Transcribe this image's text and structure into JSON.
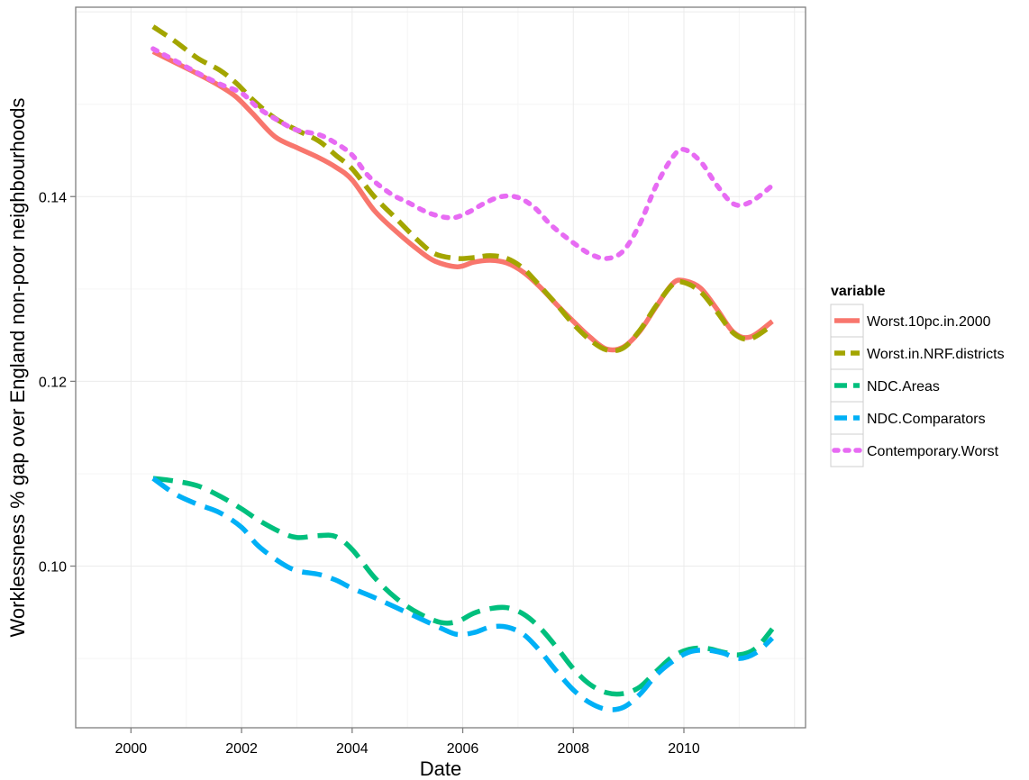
{
  "chart_data": {
    "type": "line",
    "xlabel": "Date",
    "ylabel": "Worklessness % gap over England non-poor neighbourhoods",
    "xlim": [
      1999.0,
      2012.2
    ],
    "ylim": [
      0.0825,
      0.1605
    ],
    "xticks": [
      2000,
      2002,
      2004,
      2006,
      2008,
      2010
    ],
    "yticks": [
      0.1,
      0.12,
      0.14
    ],
    "grid": true,
    "legend": {
      "title": "variable",
      "position": "right"
    },
    "series": [
      {
        "name": "Worst.10pc.in.2000",
        "color": "#F8766D",
        "dash": "solid",
        "x": [
          2000.4,
          2000.8,
          2001.2,
          2001.6,
          2001.9,
          2002.2,
          2002.6,
          2003.0,
          2003.4,
          2003.7,
          2004.0,
          2004.4,
          2004.8,
          2005.2,
          2005.5,
          2005.9,
          2006.2,
          2006.5,
          2006.8,
          2007.1,
          2007.4,
          2007.7,
          2008.0,
          2008.3,
          2008.6,
          2008.9,
          2009.2,
          2009.5,
          2009.8,
          2010.0,
          2010.3,
          2010.6,
          2010.9,
          2011.2,
          2011.6
        ],
        "y": [
          0.1557,
          0.1545,
          0.1533,
          0.152,
          0.1508,
          0.149,
          0.1465,
          0.1453,
          0.1442,
          0.1432,
          0.1418,
          0.1385,
          0.1362,
          0.1342,
          0.133,
          0.1324,
          0.1329,
          0.1331,
          0.1328,
          0.1318,
          0.1302,
          0.1283,
          0.1265,
          0.1248,
          0.1235,
          0.1237,
          0.1254,
          0.1281,
          0.1306,
          0.1309,
          0.1301,
          0.1278,
          0.1253,
          0.1248,
          0.1265
        ]
      },
      {
        "name": "Worst.in.NRF.districts",
        "color": "#A3A500",
        "dash": "long-dash",
        "x": [
          2000.4,
          2000.8,
          2001.2,
          2001.6,
          2001.9,
          2002.2,
          2002.6,
          2003.0,
          2003.4,
          2003.7,
          2004.0,
          2004.4,
          2004.8,
          2005.2,
          2005.5,
          2005.9,
          2006.2,
          2006.5,
          2006.8,
          2007.1,
          2007.4,
          2007.7,
          2008.0,
          2008.3,
          2008.6,
          2008.9,
          2009.2,
          2009.5,
          2009.8,
          2010.0,
          2010.3,
          2010.6,
          2010.9,
          2011.2,
          2011.6
        ],
        "y": [
          0.1584,
          0.1568,
          0.155,
          0.1537,
          0.1523,
          0.1505,
          0.1485,
          0.1472,
          0.146,
          0.1445,
          0.143,
          0.14,
          0.1376,
          0.1352,
          0.1338,
          0.1333,
          0.1334,
          0.1336,
          0.1333,
          0.1322,
          0.1303,
          0.1283,
          0.1262,
          0.1245,
          0.1234,
          0.1236,
          0.1255,
          0.1282,
          0.1305,
          0.1307,
          0.1297,
          0.1275,
          0.1252,
          0.1246,
          0.1261
        ]
      },
      {
        "name": "NDC.Areas",
        "color": "#00BF7D",
        "dash": "dash",
        "x": [
          2000.4,
          2000.8,
          2001.2,
          2001.6,
          2002.0,
          2002.3,
          2002.7,
          2003.0,
          2003.4,
          2003.7,
          2004.0,
          2004.4,
          2004.8,
          2005.2,
          2005.6,
          2005.9,
          2006.2,
          2006.5,
          2006.8,
          2007.1,
          2007.4,
          2007.7,
          2008.0,
          2008.3,
          2008.6,
          2008.9,
          2009.2,
          2009.5,
          2009.8,
          2010.1,
          2010.4,
          2010.7,
          2011.0,
          2011.3,
          2011.6
        ],
        "y": [
          0.1095,
          0.1092,
          0.1087,
          0.1076,
          0.1062,
          0.105,
          0.1037,
          0.1031,
          0.1033,
          0.1032,
          0.1018,
          0.0988,
          0.0965,
          0.0949,
          0.0939,
          0.094,
          0.0949,
          0.0954,
          0.0955,
          0.0948,
          0.0933,
          0.0912,
          0.0889,
          0.0872,
          0.0863,
          0.0862,
          0.0869,
          0.0886,
          0.0902,
          0.091,
          0.0911,
          0.0907,
          0.0904,
          0.0911,
          0.0932
        ]
      },
      {
        "name": "NDC.Comparators",
        "color": "#00B0F6",
        "dash": "dash",
        "x": [
          2000.4,
          2000.8,
          2001.2,
          2001.6,
          2002.0,
          2002.3,
          2002.7,
          2003.0,
          2003.4,
          2003.7,
          2004.0,
          2004.4,
          2004.8,
          2005.2,
          2005.6,
          2005.9,
          2006.2,
          2006.5,
          2006.8,
          2007.1,
          2007.4,
          2007.7,
          2008.0,
          2008.3,
          2008.6,
          2008.9,
          2009.2,
          2009.5,
          2009.8,
          2010.1,
          2010.4,
          2010.7,
          2011.0,
          2011.3,
          2011.6
        ],
        "y": [
          0.1095,
          0.1078,
          0.1067,
          0.1058,
          0.1042,
          0.1022,
          0.1004,
          0.0995,
          0.0991,
          0.0985,
          0.0976,
          0.0966,
          0.0955,
          0.0944,
          0.0933,
          0.0926,
          0.0928,
          0.0934,
          0.0934,
          0.0926,
          0.0908,
          0.0886,
          0.0866,
          0.0852,
          0.0845,
          0.0847,
          0.0861,
          0.0882,
          0.0897,
          0.0907,
          0.0909,
          0.0906,
          0.09,
          0.0906,
          0.0922
        ]
      },
      {
        "name": "Contemporary.Worst",
        "color": "#E76BF3",
        "dash": "dot",
        "x": [
          2000.4,
          2000.8,
          2001.2,
          2001.6,
          2002.0,
          2002.3,
          2002.7,
          2003.0,
          2003.4,
          2003.7,
          2004.0,
          2004.3,
          2004.7,
          2005.0,
          2005.4,
          2005.8,
          2006.1,
          2006.4,
          2006.7,
          2007.0,
          2007.3,
          2007.6,
          2008.0,
          2008.3,
          2008.6,
          2008.9,
          2009.2,
          2009.5,
          2009.8,
          2010.0,
          2010.3,
          2010.6,
          2010.9,
          2011.2,
          2011.6
        ],
        "y": [
          0.156,
          0.1547,
          0.1534,
          0.1522,
          0.1512,
          0.1496,
          0.1481,
          0.1472,
          0.1467,
          0.1458,
          0.1445,
          0.1422,
          0.1403,
          0.1394,
          0.1382,
          0.1377,
          0.1383,
          0.1393,
          0.14,
          0.1399,
          0.1388,
          0.1369,
          0.135,
          0.1338,
          0.1333,
          0.1341,
          0.137,
          0.1412,
          0.1443,
          0.1451,
          0.1438,
          0.1412,
          0.1392,
          0.1394,
          0.1412
        ]
      }
    ]
  }
}
